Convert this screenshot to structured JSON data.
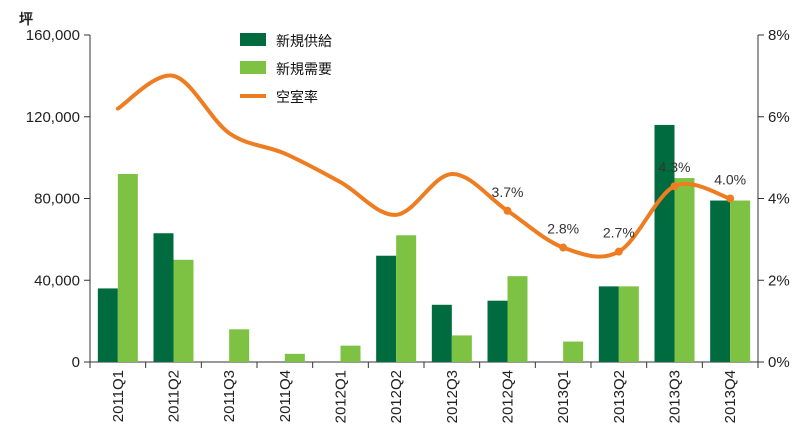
{
  "chart_data": {
    "type": "bar",
    "categories": [
      "2011Q1",
      "2011Q2",
      "2011Q3",
      "2011Q4",
      "2012Q1",
      "2012Q2",
      "2012Q3",
      "2012Q4",
      "2013Q1",
      "2013Q2",
      "2013Q3",
      "2013Q4"
    ],
    "y_left_unit": "坪",
    "y_left_ticks": [
      "0",
      "40,000",
      "80,000",
      "120,000",
      "160,000"
    ],
    "y_left_lim": [
      0,
      160000
    ],
    "y_right_ticks": [
      "0%",
      "2%",
      "4%",
      "6%",
      "8%"
    ],
    "y_right_lim": [
      0,
      8
    ],
    "legend_position": "top-center",
    "series": [
      {
        "name": "新規供給",
        "kind": "bar",
        "axis": "left",
        "color": "#006b3f",
        "values": [
          36000,
          63000,
          0,
          0,
          0,
          52000,
          28000,
          30000,
          0,
          37000,
          116000,
          79000
        ]
      },
      {
        "name": "新規需要",
        "kind": "bar",
        "axis": "left",
        "color": "#7dc242",
        "values": [
          92000,
          50000,
          16000,
          4000,
          8000,
          62000,
          13000,
          42000,
          10000,
          37000,
          90000,
          79000
        ]
      },
      {
        "name": "空室率",
        "kind": "line",
        "axis": "right",
        "color": "#ee7d22",
        "values": [
          6.2,
          7.0,
          5.6,
          5.1,
          4.4,
          3.6,
          4.6,
          3.7,
          2.8,
          2.7,
          4.3,
          4.0
        ]
      }
    ],
    "data_labels": [
      {
        "index": 7,
        "text": "3.7%"
      },
      {
        "index": 8,
        "text": "2.8%"
      },
      {
        "index": 9,
        "text": "2.7%"
      },
      {
        "index": 10,
        "text": "4.3%"
      },
      {
        "index": 11,
        "text": "4.0%"
      }
    ],
    "grid": false
  }
}
